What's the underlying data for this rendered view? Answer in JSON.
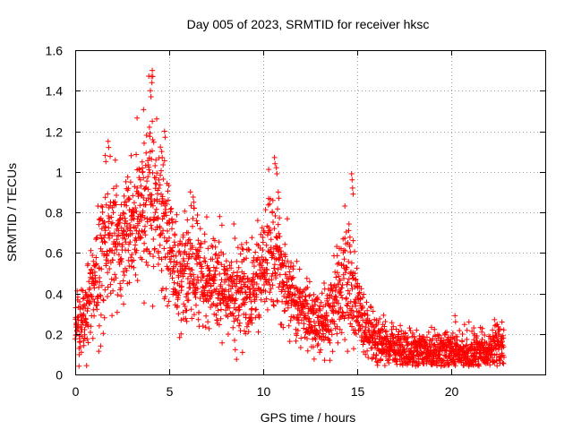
{
  "chart_data": {
    "type": "scatter",
    "title": "Day 005 of 2023, SRMTID for receiver hksc",
    "xlabel": "GPS time / hours",
    "ylabel": "SRMTID / TECUs",
    "xlim": [
      0,
      25
    ],
    "ylim": [
      0,
      1.6
    ],
    "xticks": [
      "0",
      "5",
      "10",
      "15",
      "20"
    ],
    "yticks": [
      "0",
      "0.2",
      "0.4",
      "0.6",
      "0.8",
      "1",
      "1.2",
      "1.4",
      "1.6"
    ],
    "grid": true,
    "marker": "+",
    "color": "#ff0000",
    "series": [
      {
        "name": "SRMTID",
        "profile": [
          [
            0.0,
            0.22,
            0.07
          ],
          [
            0.5,
            0.28,
            0.1
          ],
          [
            1.0,
            0.45,
            0.12
          ],
          [
            1.5,
            0.62,
            0.16
          ],
          [
            2.0,
            0.7,
            0.16
          ],
          [
            2.5,
            0.66,
            0.15
          ],
          [
            3.0,
            0.72,
            0.16
          ],
          [
            3.5,
            0.78,
            0.18
          ],
          [
            4.0,
            0.85,
            0.2
          ],
          [
            4.5,
            0.8,
            0.18
          ],
          [
            5.0,
            0.62,
            0.15
          ],
          [
            5.5,
            0.45,
            0.12
          ],
          [
            6.0,
            0.52,
            0.14
          ],
          [
            6.5,
            0.5,
            0.13
          ],
          [
            7.0,
            0.46,
            0.12
          ],
          [
            7.5,
            0.44,
            0.12
          ],
          [
            8.0,
            0.4,
            0.12
          ],
          [
            8.5,
            0.4,
            0.12
          ],
          [
            9.0,
            0.42,
            0.12
          ],
          [
            9.5,
            0.45,
            0.12
          ],
          [
            10.0,
            0.52,
            0.13
          ],
          [
            10.5,
            0.62,
            0.15
          ],
          [
            11.0,
            0.48,
            0.12
          ],
          [
            11.5,
            0.38,
            0.11
          ],
          [
            12.0,
            0.32,
            0.1
          ],
          [
            12.5,
            0.3,
            0.09
          ],
          [
            13.0,
            0.26,
            0.08
          ],
          [
            13.5,
            0.28,
            0.09
          ],
          [
            14.0,
            0.42,
            0.13
          ],
          [
            14.5,
            0.5,
            0.15
          ],
          [
            15.0,
            0.32,
            0.1
          ],
          [
            15.5,
            0.22,
            0.07
          ],
          [
            16.0,
            0.17,
            0.06
          ],
          [
            16.5,
            0.15,
            0.05
          ],
          [
            17.0,
            0.13,
            0.05
          ],
          [
            17.5,
            0.12,
            0.05
          ],
          [
            18.0,
            0.12,
            0.05
          ],
          [
            18.5,
            0.12,
            0.05
          ],
          [
            19.0,
            0.11,
            0.05
          ],
          [
            19.5,
            0.11,
            0.05
          ],
          [
            20.0,
            0.11,
            0.05
          ],
          [
            20.5,
            0.11,
            0.05
          ],
          [
            21.0,
            0.1,
            0.05
          ],
          [
            21.5,
            0.1,
            0.05
          ],
          [
            22.0,
            0.11,
            0.05
          ],
          [
            22.5,
            0.13,
            0.06
          ],
          [
            22.8,
            0.16,
            0.07
          ]
        ],
        "peaks": [
          [
            1.6,
            1.08
          ],
          [
            1.75,
            1.15
          ],
          [
            2.6,
            0.88
          ],
          [
            3.3,
            0.92
          ],
          [
            3.6,
            1.0
          ],
          [
            3.95,
            1.22
          ],
          [
            4.0,
            1.4
          ],
          [
            4.05,
            1.47
          ],
          [
            4.1,
            1.5
          ],
          [
            4.6,
            1.1
          ],
          [
            4.75,
            1.2
          ],
          [
            6.3,
            0.85
          ],
          [
            10.6,
            1.07
          ],
          [
            10.7,
            1.02
          ],
          [
            10.8,
            0.9
          ],
          [
            14.7,
            0.99
          ],
          [
            14.75,
            0.92
          ],
          [
            20.2,
            0.29
          ],
          [
            21.2,
            0.23
          ],
          [
            22.3,
            0.27
          ]
        ],
        "count": 2600
      }
    ]
  }
}
